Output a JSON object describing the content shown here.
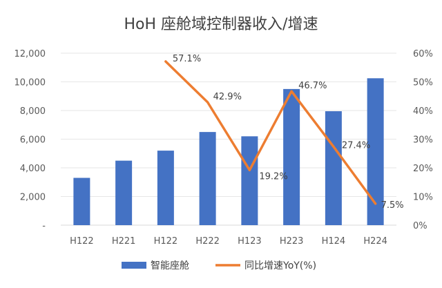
{
  "chart_data": {
    "type": "bar",
    "title": "HoH 座舱域控制器收入/增速",
    "categories": [
      "H122",
      "H221",
      "H122",
      "H222",
      "H123",
      "H223",
      "H124",
      "H224"
    ],
    "series": [
      {
        "name": "智能座舱",
        "type": "bar",
        "axis": "left",
        "values": [
          3300,
          4500,
          5200,
          6500,
          6200,
          9500,
          7950,
          10250
        ],
        "color": "#4472C4"
      },
      {
        "name": "同比增速YoY(%)",
        "type": "line",
        "axis": "right",
        "values": [
          null,
          null,
          57.1,
          42.9,
          19.2,
          46.7,
          27.4,
          7.5
        ],
        "labels": [
          "",
          "",
          "57.1%",
          "42.9%",
          "19.2%",
          "46.7%",
          "27.4%",
          "7.5%"
        ],
        "color": "#ED7D31"
      }
    ],
    "left_axis": {
      "ylim": [
        0,
        12000
      ],
      "ticks": [
        "-",
        "2,000",
        "4,000",
        "6,000",
        "8,000",
        "10,000",
        "12,000"
      ]
    },
    "right_axis": {
      "ylim": [
        0,
        60
      ],
      "ticks": [
        "0%",
        "10%",
        "20%",
        "30%",
        "40%",
        "50%",
        "60%"
      ]
    },
    "grid": true,
    "legend_position": "bottom"
  }
}
